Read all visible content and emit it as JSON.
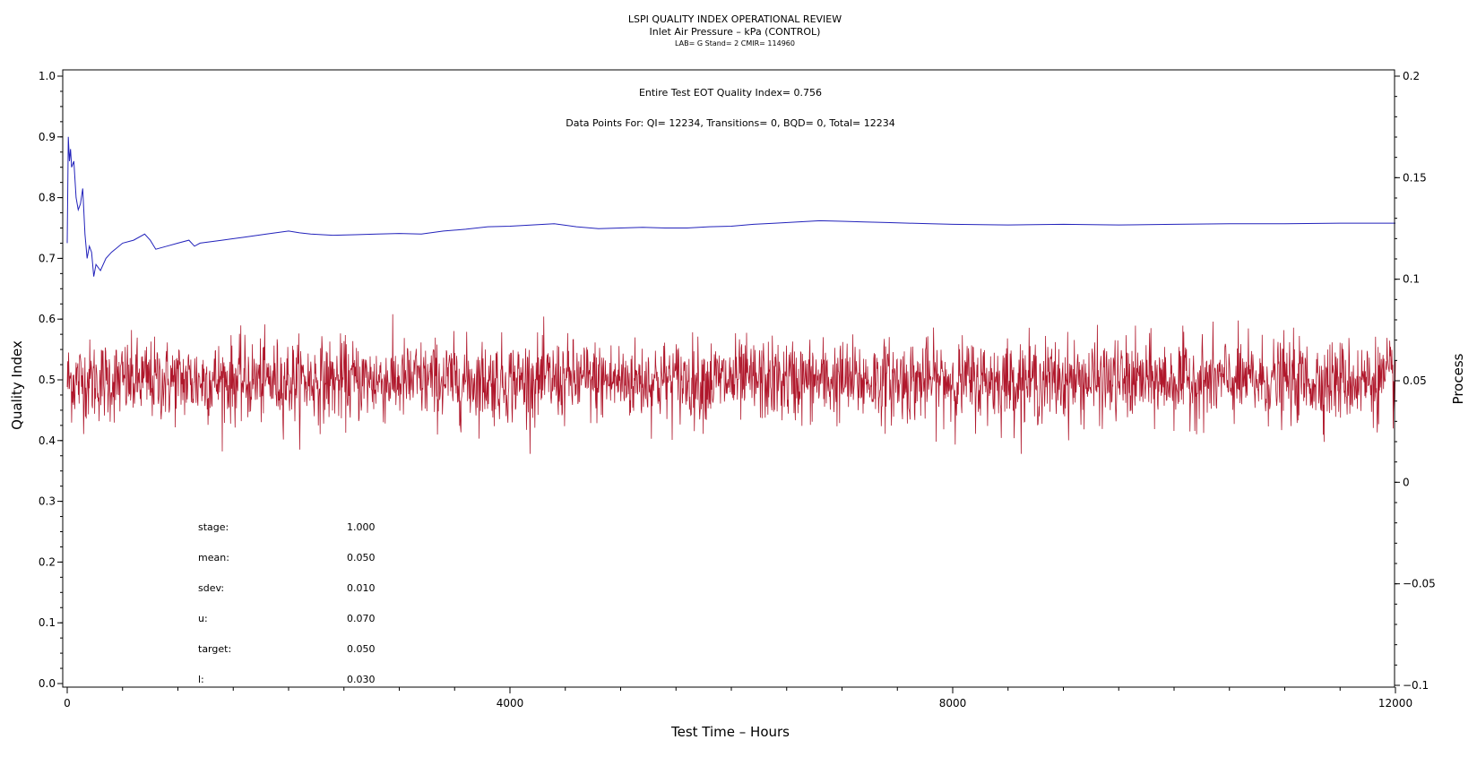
{
  "chart_data": {
    "type": "line",
    "title": "LSPI QUALITY INDEX OPERATIONAL REVIEW",
    "subtitle": "Inlet Air Pressure – kPa (CONTROL)",
    "subtitle2": "LAB= G Stand= 2 CMIR= 114960",
    "xlabel": "Test Time – Hours",
    "ylabel_left": "Quality Index",
    "ylabel_right": "Process",
    "xlim": [
      0,
      12000
    ],
    "ylim_left": [
      0,
      1.0
    ],
    "ylim_right": [
      -0.1,
      0.2
    ],
    "xticks": [
      0,
      4000,
      8000,
      12000
    ],
    "xtick_labels": [
      "0",
      "4000",
      "8000",
      "12000"
    ],
    "yticks_left": [
      0.0,
      0.1,
      0.2,
      0.3,
      0.4,
      0.5,
      0.6,
      0.7,
      0.8,
      0.9,
      1.0
    ],
    "ytick_labels_left": [
      "0.0",
      "0.1",
      "0.2",
      "0.3",
      "0.4",
      "0.5",
      "0.6",
      "0.7",
      "0.8",
      "0.9",
      "1.0"
    ],
    "yticks_right": [
      -0.1,
      -0.05,
      0,
      0.05,
      0.1,
      0.15,
      0.2
    ],
    "ytick_labels_right": [
      "−0.1",
      "−0.05",
      "0",
      "0.05",
      "0.1",
      "0.15",
      "0.2"
    ],
    "annotation_eot": "Entire Test EOT Quality Index=   0.756",
    "annotation_points": "Data Points For: QI= 12234, Transitions=     0, BQD=     0, Total= 12234",
    "stats": [
      {
        "label": "stage:",
        "value": "1.000"
      },
      {
        "label": "mean:",
        "value": "0.050"
      },
      {
        "label": "sdev:",
        "value": "0.010"
      },
      {
        "label": "u:",
        "value": "0.070"
      },
      {
        "label": "target:",
        "value": "0.050"
      },
      {
        "label": "l:",
        "value": "0.030"
      }
    ],
    "series": [
      {
        "axis": "left",
        "color": "#2222bb",
        "x": [
          0,
          10,
          20,
          30,
          40,
          60,
          80,
          100,
          120,
          140,
          160,
          180,
          200,
          220,
          240,
          260,
          300,
          350,
          400,
          500,
          600,
          700,
          750,
          800,
          900,
          1000,
          1100,
          1150,
          1200,
          1400,
          1600,
          1800,
          2000,
          2100,
          2200,
          2400,
          2600,
          2800,
          3000,
          3200,
          3400,
          3600,
          3800,
          4000,
          4200,
          4400,
          4600,
          4800,
          5000,
          5200,
          5400,
          5600,
          5800,
          6000,
          6200,
          6400,
          6600,
          6800,
          7000,
          7200,
          7400,
          7600,
          7800,
          8000,
          8500,
          9000,
          9500,
          10000,
          10500,
          11000,
          11500,
          12000
        ],
        "y": [
          0.725,
          0.9,
          0.86,
          0.88,
          0.85,
          0.86,
          0.8,
          0.78,
          0.79,
          0.815,
          0.74,
          0.7,
          0.72,
          0.71,
          0.67,
          0.69,
          0.68,
          0.7,
          0.71,
          0.725,
          0.73,
          0.74,
          0.73,
          0.715,
          0.72,
          0.725,
          0.73,
          0.72,
          0.725,
          0.73,
          0.735,
          0.74,
          0.745,
          0.742,
          0.74,
          0.738,
          0.739,
          0.74,
          0.741,
          0.74,
          0.745,
          0.748,
          0.752,
          0.753,
          0.755,
          0.757,
          0.752,
          0.749,
          0.75,
          0.751,
          0.75,
          0.75,
          0.752,
          0.753,
          0.756,
          0.758,
          0.76,
          0.762,
          0.761,
          0.76,
          0.759,
          0.758,
          0.757,
          0.756,
          0.755,
          0.756,
          0.755,
          0.756,
          0.757,
          0.757,
          0.758,
          0.758
        ]
      },
      {
        "axis": "right",
        "color": "#b0182c",
        "summary": {
          "mean": 0.05,
          "sdev": 0.01,
          "min": 0.014,
          "max": 0.092,
          "n": 12234
        }
      }
    ]
  }
}
